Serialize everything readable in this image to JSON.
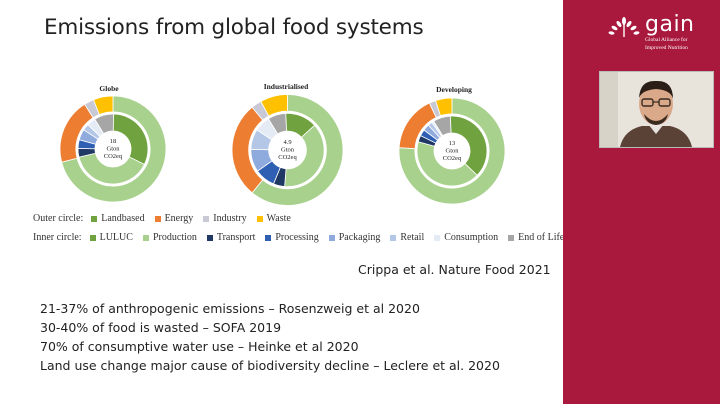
{
  "slide": {
    "title": "Emissions from global food systems",
    "citation": "Crippa et al. Nature Food 2021",
    "facts": [
      "21-37% of anthropogenic emissions – Rosenzweig et al 2020",
      "30-40% of food is wasted – SOFA 2019",
      "70% of consumptive water use – Heinke et al 2020",
      "Land use change major cause of biodiversity decline – Leclere et al. 2020"
    ]
  },
  "legend": {
    "outer_label": "Outer circle:",
    "outer_items": [
      {
        "name": "Landbased",
        "color": "#70a23f"
      },
      {
        "name": "Energy",
        "color": "#ed7d31"
      },
      {
        "name": "Industry",
        "color": "#c9c9d6"
      },
      {
        "name": "Waste",
        "color": "#ffc000"
      }
    ],
    "inner_label": "Inner circle:",
    "inner_items": [
      {
        "name": "LULUC",
        "color": "#70a23f"
      },
      {
        "name": "Production",
        "color": "#a9d18e"
      },
      {
        "name": "Transport",
        "color": "#1f3864"
      },
      {
        "name": "Processing",
        "color": "#2e5fb3"
      },
      {
        "name": "Packaging",
        "color": "#8faadc"
      },
      {
        "name": "Retail",
        "color": "#b4c7e7"
      },
      {
        "name": "Consumption",
        "color": "#e4ebf5"
      },
      {
        "name": "End of Life",
        "color": "#a6a6a6"
      }
    ]
  },
  "chart_data": [
    {
      "type": "pie",
      "title": "Globe",
      "center_text": [
        "18",
        "Gton",
        "CO2eq"
      ],
      "outer": [
        {
          "name": "Landbased",
          "value": 71
        },
        {
          "name": "Energy",
          "value": 20
        },
        {
          "name": "Industry",
          "value": 3
        },
        {
          "name": "Waste",
          "value": 6
        }
      ],
      "inner": [
        {
          "name": "End of Life",
          "value": 9
        },
        {
          "name": "LULUC",
          "value": 32
        },
        {
          "name": "Production",
          "value": 39
        },
        {
          "name": "Transport",
          "value": 4
        },
        {
          "name": "Processing",
          "value": 4
        },
        {
          "name": "Packaging",
          "value": 5
        },
        {
          "name": "Retail",
          "value": 3
        },
        {
          "name": "Consumption",
          "value": 4
        }
      ]
    },
    {
      "type": "pie",
      "title": "Industrialised",
      "center_text": [
        "4.9",
        "Gton",
        "CO2eq"
      ],
      "outer": [
        {
          "name": "Landbased",
          "value": 61
        },
        {
          "name": "Energy",
          "value": 28
        },
        {
          "name": "Industry",
          "value": 3
        },
        {
          "name": "Waste",
          "value": 8
        }
      ],
      "inner": [
        {
          "name": "End of Life",
          "value": 8
        },
        {
          "name": "LULUC",
          "value": 14
        },
        {
          "name": "Production",
          "value": 38
        },
        {
          "name": "Transport",
          "value": 5
        },
        {
          "name": "Processing",
          "value": 9
        },
        {
          "name": "Packaging",
          "value": 10
        },
        {
          "name": "Retail",
          "value": 9
        },
        {
          "name": "Consumption",
          "value": 7
        }
      ]
    },
    {
      "type": "pie",
      "title": "Developing",
      "center_text": [
        "13",
        "Gton",
        "CO2eq"
      ],
      "outer": [
        {
          "name": "Landbased",
          "value": 76
        },
        {
          "name": "Energy",
          "value": 17
        },
        {
          "name": "Industry",
          "value": 2
        },
        {
          "name": "Waste",
          "value": 5
        }
      ],
      "inner": [
        {
          "name": "End of Life",
          "value": 8
        },
        {
          "name": "LULUC",
          "value": 38
        },
        {
          "name": "Production",
          "value": 42
        },
        {
          "name": "Transport",
          "value": 3
        },
        {
          "name": "Processing",
          "value": 3
        },
        {
          "name": "Packaging",
          "value": 3
        },
        {
          "name": "Retail",
          "value": 2
        },
        {
          "name": "Consumption",
          "value": 1
        }
      ]
    }
  ],
  "sidebar": {
    "logo_word": "gain",
    "logo_sub": [
      "Global Alliance for",
      "Improved Nutrition"
    ]
  }
}
